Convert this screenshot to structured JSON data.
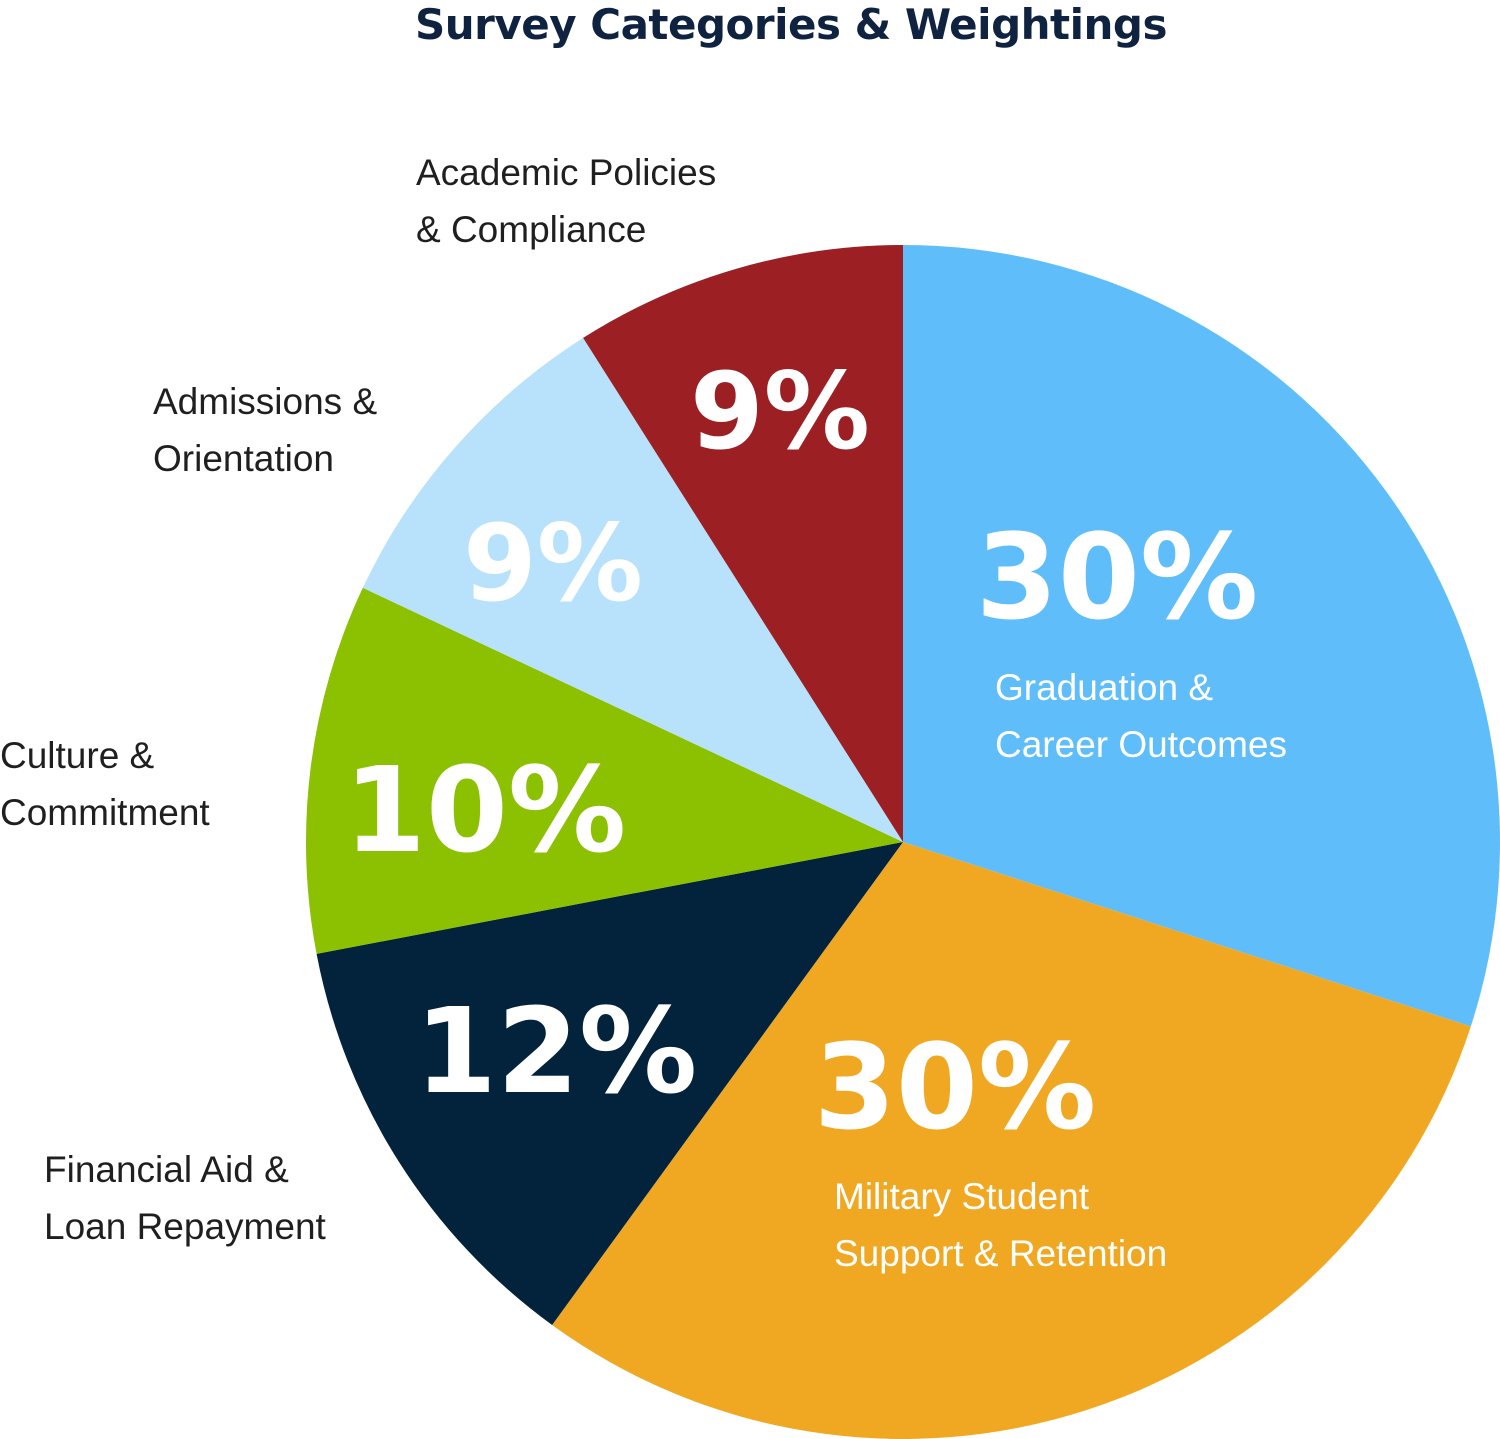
{
  "chart_data": {
    "type": "pie",
    "title": "Survey Categories & Weightings",
    "start_angle_deg": 0,
    "direction": "clockwise",
    "slices": [
      {
        "label_lines": [
          "Graduation &",
          "Career Outcomes"
        ],
        "value": 30,
        "display": "30%",
        "color": "#5fbefa",
        "label_inside": true
      },
      {
        "label_lines": [
          "Military Student",
          "Support & Retention"
        ],
        "value": 30,
        "display": "30%",
        "color": "#f0a823",
        "label_inside": true
      },
      {
        "label_lines": [
          "Financial Aid &",
          "Loan Repayment"
        ],
        "value": 12,
        "display": "12%",
        "color": "#03223c",
        "label_inside": false
      },
      {
        "label_lines": [
          "Culture &",
          "Commitment"
        ],
        "value": 10,
        "display": "10%",
        "color": "#8bc100",
        "label_inside": false
      },
      {
        "label_lines": [
          "Admissions &",
          "Orientation"
        ],
        "value": 9,
        "display": "9%",
        "color": "#b8e2fb",
        "label_inside": false
      },
      {
        "label_lines": [
          "Academic Policies",
          "& Compliance"
        ],
        "value": 9,
        "display": "9%",
        "color": "#9c1f24",
        "label_inside": false
      }
    ]
  }
}
